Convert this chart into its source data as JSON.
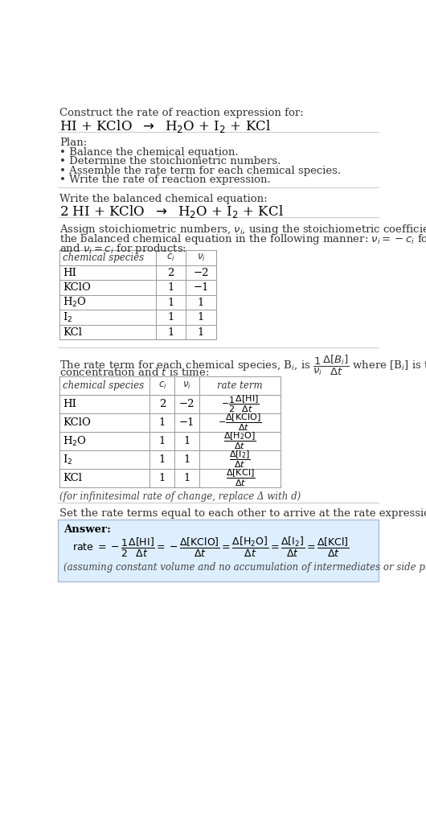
{
  "bg_color": "#ffffff",
  "text_color": "#000000",
  "gray_text": "#444444",
  "table_border": "#999999",
  "answer_bg": "#ddeeff",
  "answer_border": "#aabbdd",
  "section1_title": "Construct the rate of reaction expression for:",
  "plan_title": "Plan:",
  "plan_items": [
    "• Balance the chemical equation.",
    "• Determine the stoichiometric numbers.",
    "• Assemble the rate term for each chemical species.",
    "• Write the rate of reaction expression."
  ],
  "balanced_title": "Write the balanced chemical equation:",
  "set_rate_text": "Set the rate terms equal to each other to arrive at the rate expression:",
  "answer_label": "Answer:",
  "infinitesimal_note": "(for infinitesimal rate of change, replace Δ with d)",
  "assuming_note": "(assuming constant volume and no accumulation of intermediates or side products)",
  "table1_species": [
    "HI",
    "KClO",
    "H$_2$O",
    "I$_2$",
    "KCl"
  ],
  "table1_ci": [
    "2",
    "1",
    "1",
    "1",
    "1"
  ],
  "table1_ni": [
    "−2",
    "−1",
    "1",
    "1",
    "1"
  ],
  "table2_species": [
    "HI",
    "KClO",
    "H$_2$O",
    "I$_2$",
    "KCl"
  ],
  "table2_ci": [
    "2",
    "1",
    "1",
    "1",
    "1"
  ],
  "table2_ni": [
    "−2",
    "−1",
    "1",
    "1",
    "1"
  ]
}
